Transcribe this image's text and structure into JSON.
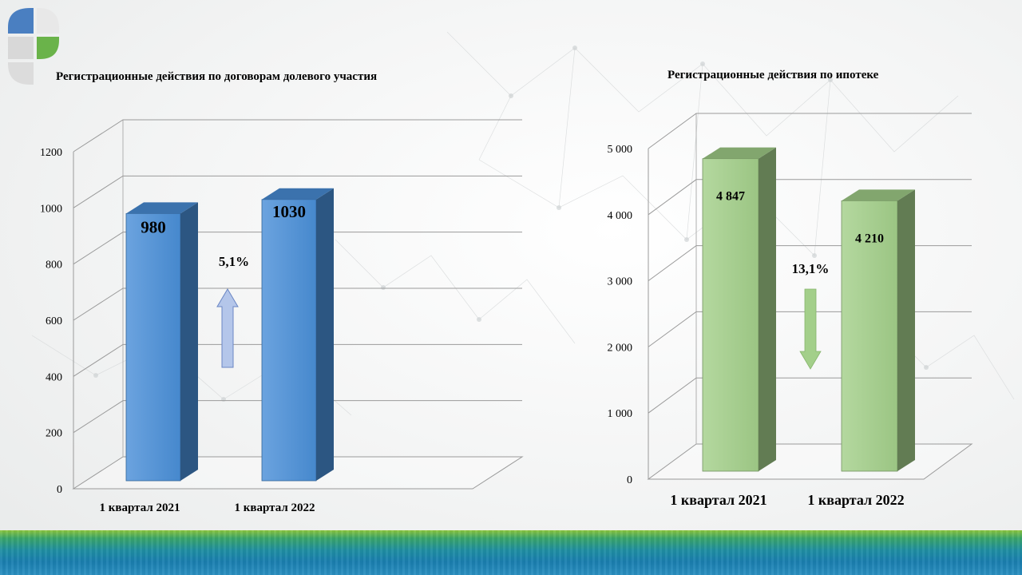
{
  "chart_data": [
    {
      "type": "bar",
      "title": "Регистрационные действия по договорам долевого участия",
      "categories": [
        "1 квартал 2021",
        "1 квартал 2022"
      ],
      "values": [
        980,
        1030
      ],
      "value_labels": [
        "980",
        "1030"
      ],
      "ylim": [
        0,
        1200
      ],
      "yticks": [
        0,
        200,
        400,
        600,
        800,
        1000,
        1200
      ],
      "ytick_labels": [
        "0",
        "200",
        "400",
        "600",
        "800",
        "1000",
        "1200"
      ],
      "grid": true,
      "annotation": "5,1%",
      "trend": "up",
      "color": "#4a8fd8"
    },
    {
      "type": "bar",
      "title": "Регистрационные действия по ипотеке",
      "categories": [
        "1 квартал 2021",
        "1 квартал 2022"
      ],
      "values": [
        4847,
        4210
      ],
      "value_labels": [
        "4 847",
        "4 210"
      ],
      "ylim": [
        0,
        5000
      ],
      "yticks": [
        0,
        1000,
        2000,
        3000,
        4000,
        5000
      ],
      "ytick_labels": [
        "0",
        "1 000",
        "2 000",
        "3 000",
        "4 000",
        "5 000"
      ],
      "grid": true,
      "annotation": "13,1%",
      "trend": "down",
      "color": "#a3cf8a"
    }
  ]
}
